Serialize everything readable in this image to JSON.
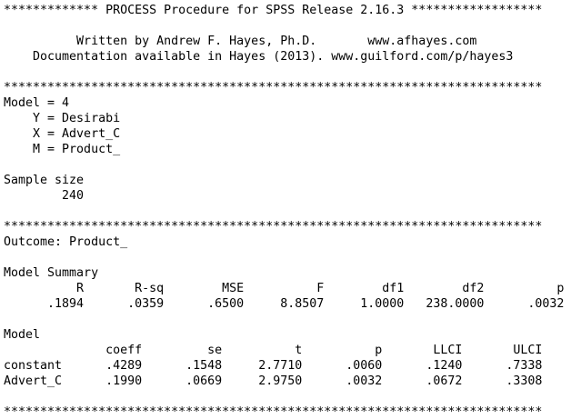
{
  "lines": [
    "************* PROCESS Procedure for SPSS Release 2.16.3 ******************",
    "          Written by Andrew F. Hayes, Ph.D.       www.afhayes.com",
    "    Documentation available in Hayes (2013). www.guilford.com/p/hayes3",
    "**************************************************************************",
    "Model = 4",
    "    Y = Desirabi",
    "    X = Advert_C",
    "    M = Product_",
    "Sample size",
    "        240",
    "**************************************************************************",
    "Outcome: Product_",
    "Model Summary",
    "          R       R-sq        MSE          F        df1        df2          p",
    "      .1894      .0359      .6500     8.8507     1.0000   238.0000      .0032",
    "Model",
    "              coeff         se          t          p       LLCI       ULCI",
    "constant      .4289      .1548     2.7710      .0060      .1240      .7338",
    "Advert_C      .1990      .0669     2.9750      .0032      .0672      .3308",
    "**************************************************************************"
  ]
}
